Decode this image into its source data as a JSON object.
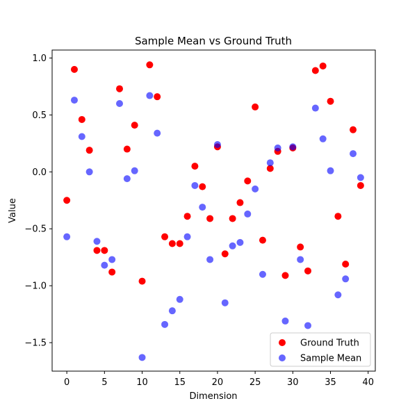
{
  "chart_data": {
    "type": "scatter",
    "title": "Sample Mean vs Ground Truth",
    "xlabel": "Dimension",
    "ylabel": "Value",
    "xlim": [
      -1.95,
      40.95
    ],
    "ylim": [
      -1.75,
      1.07
    ],
    "xticks": [
      0,
      5,
      10,
      15,
      20,
      25,
      30,
      35,
      40
    ],
    "yticks": [
      -1.5,
      -1.0,
      -0.5,
      0.0,
      0.5,
      1.0
    ],
    "ytick_labels": [
      "−1.5",
      "−1.0",
      "−0.5",
      "0.0",
      "0.5",
      "1.0"
    ],
    "grid": false,
    "legend_position": "lower-right",
    "series": [
      {
        "name": "Ground Truth",
        "color": "#ff0000",
        "alpha": 1.0,
        "x": [
          0,
          1,
          2,
          3,
          4,
          5,
          6,
          7,
          8,
          9,
          10,
          11,
          12,
          13,
          14,
          15,
          16,
          17,
          18,
          19,
          20,
          21,
          22,
          23,
          24,
          25,
          26,
          27,
          28,
          29,
          30,
          31,
          32,
          33,
          34,
          35,
          36,
          37,
          38,
          39
        ],
        "y": [
          -0.25,
          0.9,
          0.46,
          0.19,
          -0.69,
          -0.69,
          -0.88,
          0.73,
          0.2,
          0.41,
          -0.96,
          0.94,
          0.66,
          -0.57,
          -0.63,
          -0.63,
          -0.39,
          0.05,
          -0.13,
          -0.41,
          0.22,
          -0.72,
          -0.41,
          -0.27,
          -0.08,
          0.57,
          -0.6,
          0.03,
          0.18,
          -0.91,
          0.21,
          -0.66,
          -0.87,
          0.89,
          0.93,
          0.62,
          -0.39,
          -0.81,
          0.37,
          -0.12
        ]
      },
      {
        "name": "Sample Mean",
        "color": "#0000ff",
        "alpha": 0.6,
        "x": [
          0,
          1,
          2,
          3,
          4,
          5,
          6,
          7,
          8,
          9,
          10,
          11,
          12,
          13,
          14,
          15,
          16,
          17,
          18,
          19,
          20,
          21,
          22,
          23,
          24,
          25,
          26,
          27,
          28,
          29,
          30,
          31,
          32,
          33,
          34,
          35,
          36,
          37,
          38,
          39
        ],
        "y": [
          -0.57,
          0.63,
          0.31,
          0.0,
          -0.61,
          -0.82,
          -0.77,
          0.6,
          -0.06,
          0.01,
          -1.63,
          0.67,
          0.34,
          -1.34,
          -1.22,
          -1.12,
          -0.57,
          -0.12,
          -0.31,
          -0.77,
          0.24,
          -1.15,
          -0.65,
          -0.62,
          -0.37,
          -0.15,
          -0.9,
          0.08,
          0.21,
          -1.31,
          0.22,
          -0.77,
          -1.35,
          0.56,
          0.29,
          0.01,
          -1.08,
          -0.94,
          0.16,
          -0.05
        ]
      }
    ]
  }
}
